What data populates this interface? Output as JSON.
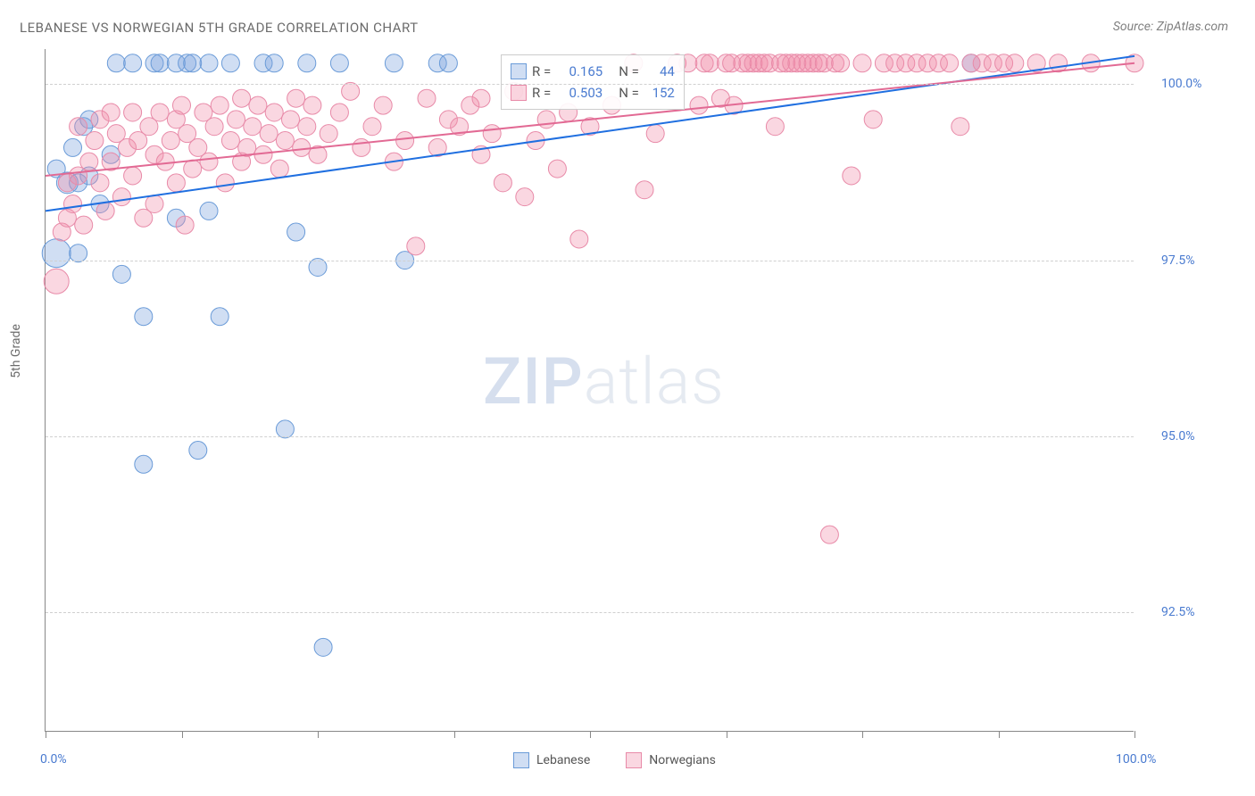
{
  "title": "LEBANESE VS NORWEGIAN 5TH GRADE CORRELATION CHART",
  "source": "Source: ZipAtlas.com",
  "y_axis_label": "5th Grade",
  "watermark": {
    "part1": "ZIP",
    "part2": "atlas"
  },
  "chart": {
    "type": "scatter",
    "background_color": "#ffffff",
    "grid_color": "#d0d0d0",
    "axis_color": "#888888",
    "xlim": [
      0,
      100
    ],
    "ylim": [
      90.8,
      100.5
    ],
    "x_ticks": [
      0,
      12.5,
      25,
      37.5,
      50,
      62.5,
      75,
      87.5,
      100
    ],
    "x_tick_labels": {
      "0": "0.0%",
      "100": "100.0%"
    },
    "y_ticks": [
      92.5,
      95.0,
      97.5,
      100.0
    ],
    "y_tick_labels": [
      "92.5%",
      "95.0%",
      "97.5%",
      "100.0%"
    ],
    "label_fontsize": 14,
    "tick_color": "#4a7bd0",
    "series": [
      {
        "name": "Lebanese",
        "fill": "rgba(120,160,220,0.35)",
        "stroke": "#6a9bd8",
        "marker_radius": 10,
        "R": "0.165",
        "N": "44",
        "trend": {
          "x1": 0,
          "y1": 98.2,
          "x2": 100,
          "y2": 100.4,
          "color": "#1f6fe0",
          "width": 2
        },
        "points": [
          [
            1,
            97.6,
            16
          ],
          [
            1,
            98.8,
            10
          ],
          [
            2,
            98.6,
            12
          ],
          [
            2.5,
            99.1,
            10
          ],
          [
            3,
            98.6,
            10
          ],
          [
            3,
            97.6,
            10
          ],
          [
            3.5,
            99.4,
            10
          ],
          [
            4,
            98.7,
            10
          ],
          [
            4,
            99.5,
            10
          ],
          [
            5,
            98.3,
            10
          ],
          [
            6,
            99.0,
            10
          ],
          [
            6.5,
            100.3,
            10
          ],
          [
            7,
            97.3,
            10
          ],
          [
            8,
            100.3,
            10
          ],
          [
            9,
            96.7,
            10
          ],
          [
            9,
            94.6,
            10
          ],
          [
            10,
            100.3,
            10
          ],
          [
            10.5,
            100.3,
            10
          ],
          [
            12,
            98.1,
            10
          ],
          [
            12,
            100.3,
            10
          ],
          [
            13,
            100.3,
            10
          ],
          [
            13.5,
            100.3,
            10
          ],
          [
            14,
            94.8,
            10
          ],
          [
            15,
            98.2,
            10
          ],
          [
            15,
            100.3,
            10
          ],
          [
            16,
            96.7,
            10
          ],
          [
            17,
            100.3,
            10
          ],
          [
            20,
            100.3,
            10
          ],
          [
            21,
            100.3,
            10
          ],
          [
            22,
            95.1,
            10
          ],
          [
            23,
            97.9,
            10
          ],
          [
            24,
            100.3,
            10
          ],
          [
            25,
            97.4,
            10
          ],
          [
            25.5,
            92.0,
            10
          ],
          [
            27,
            100.3,
            10
          ],
          [
            32,
            100.3,
            10
          ],
          [
            33,
            97.5,
            10
          ],
          [
            36,
            100.3,
            10
          ],
          [
            37,
            100.3,
            10
          ],
          [
            85,
            100.3,
            10
          ]
        ]
      },
      {
        "name": "Norwegians",
        "fill": "rgba(240,140,170,0.35)",
        "stroke": "#e88aa8",
        "marker_radius": 10,
        "R": "0.503",
        "N": "152",
        "trend": {
          "x1": 0,
          "y1": 98.7,
          "x2": 100,
          "y2": 100.3,
          "color": "#e26a94",
          "width": 2
        },
        "points": [
          [
            1,
            97.2,
            14
          ],
          [
            1.5,
            97.9,
            10
          ],
          [
            2,
            98.1,
            10
          ],
          [
            2,
            98.6,
            10
          ],
          [
            2.5,
            98.3,
            10
          ],
          [
            3,
            98.7,
            10
          ],
          [
            3,
            99.4,
            10
          ],
          [
            3.5,
            98.0,
            10
          ],
          [
            4,
            98.9,
            10
          ],
          [
            4.5,
            99.2,
            10
          ],
          [
            5,
            98.6,
            10
          ],
          [
            5,
            99.5,
            10
          ],
          [
            5.5,
            98.2,
            10
          ],
          [
            6,
            99.6,
            10
          ],
          [
            6,
            98.9,
            10
          ],
          [
            6.5,
            99.3,
            10
          ],
          [
            7,
            98.4,
            10
          ],
          [
            7.5,
            99.1,
            10
          ],
          [
            8,
            99.6,
            10
          ],
          [
            8,
            98.7,
            10
          ],
          [
            8.5,
            99.2,
            10
          ],
          [
            9,
            98.1,
            10
          ],
          [
            9.5,
            99.4,
            10
          ],
          [
            10,
            99.0,
            10
          ],
          [
            10,
            98.3,
            10
          ],
          [
            10.5,
            99.6,
            10
          ],
          [
            11,
            98.9,
            10
          ],
          [
            11.5,
            99.2,
            10
          ],
          [
            12,
            98.6,
            10
          ],
          [
            12,
            99.5,
            10
          ],
          [
            12.5,
            99.7,
            10
          ],
          [
            12.8,
            98.0,
            10
          ],
          [
            13,
            99.3,
            10
          ],
          [
            13.5,
            98.8,
            10
          ],
          [
            14,
            99.1,
            10
          ],
          [
            14.5,
            99.6,
            10
          ],
          [
            15,
            98.9,
            10
          ],
          [
            15.5,
            99.4,
            10
          ],
          [
            16,
            99.7,
            10
          ],
          [
            16.5,
            98.6,
            10
          ],
          [
            17,
            99.2,
            10
          ],
          [
            17.5,
            99.5,
            10
          ],
          [
            18,
            98.9,
            10
          ],
          [
            18,
            99.8,
            10
          ],
          [
            18.5,
            99.1,
            10
          ],
          [
            19,
            99.4,
            10
          ],
          [
            19.5,
            99.7,
            10
          ],
          [
            20,
            99.0,
            10
          ],
          [
            20.5,
            99.3,
            10
          ],
          [
            21,
            99.6,
            10
          ],
          [
            21.5,
            98.8,
            10
          ],
          [
            22,
            99.2,
            10
          ],
          [
            22.5,
            99.5,
            10
          ],
          [
            23,
            99.8,
            10
          ],
          [
            23.5,
            99.1,
            10
          ],
          [
            24,
            99.4,
            10
          ],
          [
            24.5,
            99.7,
            10
          ],
          [
            25,
            99.0,
            10
          ],
          [
            26,
            99.3,
            10
          ],
          [
            27,
            99.6,
            10
          ],
          [
            28,
            99.9,
            10
          ],
          [
            29,
            99.1,
            10
          ],
          [
            30,
            99.4,
            10
          ],
          [
            31,
            99.7,
            10
          ],
          [
            32,
            98.9,
            10
          ],
          [
            33,
            99.2,
            10
          ],
          [
            34,
            97.7,
            10
          ],
          [
            35,
            99.8,
            10
          ],
          [
            36,
            99.1,
            10
          ],
          [
            37,
            99.5,
            10
          ],
          [
            38,
            99.4,
            10
          ],
          [
            39,
            99.7,
            10
          ],
          [
            40,
            99.0,
            10
          ],
          [
            40,
            99.8,
            10
          ],
          [
            41,
            99.3,
            10
          ],
          [
            42,
            98.6,
            10
          ],
          [
            43,
            99.9,
            10
          ],
          [
            44,
            98.4,
            10
          ],
          [
            45,
            99.2,
            10
          ],
          [
            46,
            99.5,
            10
          ],
          [
            47,
            98.8,
            10
          ],
          [
            48,
            99.6,
            10
          ],
          [
            49,
            97.8,
            10
          ],
          [
            50,
            99.4,
            10
          ],
          [
            52,
            99.7,
            10
          ],
          [
            54,
            100.3,
            10
          ],
          [
            55,
            98.5,
            10
          ],
          [
            56,
            99.3,
            10
          ],
          [
            58,
            100.3,
            10
          ],
          [
            59,
            100.3,
            10
          ],
          [
            60,
            99.7,
            10
          ],
          [
            60.5,
            100.3,
            10
          ],
          [
            61,
            100.3,
            10
          ],
          [
            62,
            99.8,
            10
          ],
          [
            62.5,
            100.3,
            10
          ],
          [
            63,
            100.3,
            10
          ],
          [
            63.2,
            99.7,
            10
          ],
          [
            64,
            100.3,
            10
          ],
          [
            64.5,
            100.3,
            10
          ],
          [
            65,
            100.3,
            10
          ],
          [
            65.5,
            100.3,
            10
          ],
          [
            66,
            100.3,
            10
          ],
          [
            66.5,
            100.3,
            10
          ],
          [
            67,
            99.4,
            10
          ],
          [
            67.5,
            100.3,
            10
          ],
          [
            68,
            100.3,
            10
          ],
          [
            68.5,
            100.3,
            10
          ],
          [
            69,
            100.3,
            10
          ],
          [
            69.5,
            100.3,
            10
          ],
          [
            70,
            100.3,
            10
          ],
          [
            70.5,
            100.3,
            10
          ],
          [
            71,
            100.3,
            10
          ],
          [
            71.5,
            100.3,
            10
          ],
          [
            72,
            93.6,
            10
          ],
          [
            72.5,
            100.3,
            10
          ],
          [
            73,
            100.3,
            10
          ],
          [
            74,
            98.7,
            10
          ],
          [
            75,
            100.3,
            10
          ],
          [
            76,
            99.5,
            10
          ],
          [
            77,
            100.3,
            10
          ],
          [
            78,
            100.3,
            10
          ],
          [
            79,
            100.3,
            10
          ],
          [
            80,
            100.3,
            10
          ],
          [
            81,
            100.3,
            10
          ],
          [
            82,
            100.3,
            10
          ],
          [
            83,
            100.3,
            10
          ],
          [
            84,
            99.4,
            10
          ],
          [
            85,
            100.3,
            10
          ],
          [
            86,
            100.3,
            10
          ],
          [
            87,
            100.3,
            10
          ],
          [
            88,
            100.3,
            10
          ],
          [
            89,
            100.3,
            10
          ],
          [
            91,
            100.3,
            10
          ],
          [
            93,
            100.3,
            10
          ],
          [
            96,
            100.3,
            10
          ],
          [
            100,
            100.3,
            10
          ]
        ]
      }
    ]
  },
  "stats_legend": {
    "rows": [
      {
        "swatch_fill": "rgba(120,160,220,0.35)",
        "swatch_stroke": "#6a9bd8",
        "R_label": "R =",
        "R_val": "0.165",
        "N_label": "N =",
        "N_val": "44"
      },
      {
        "swatch_fill": "rgba(240,140,170,0.35)",
        "swatch_stroke": "#e88aa8",
        "R_label": "R =",
        "R_val": "0.503",
        "N_label": "N =",
        "N_val": "152"
      }
    ]
  },
  "bottom_legend": [
    {
      "swatch_fill": "rgba(120,160,220,0.35)",
      "swatch_stroke": "#6a9bd8",
      "label": "Lebanese"
    },
    {
      "swatch_fill": "rgba(240,140,170,0.35)",
      "swatch_stroke": "#e88aa8",
      "label": "Norwegians"
    }
  ]
}
